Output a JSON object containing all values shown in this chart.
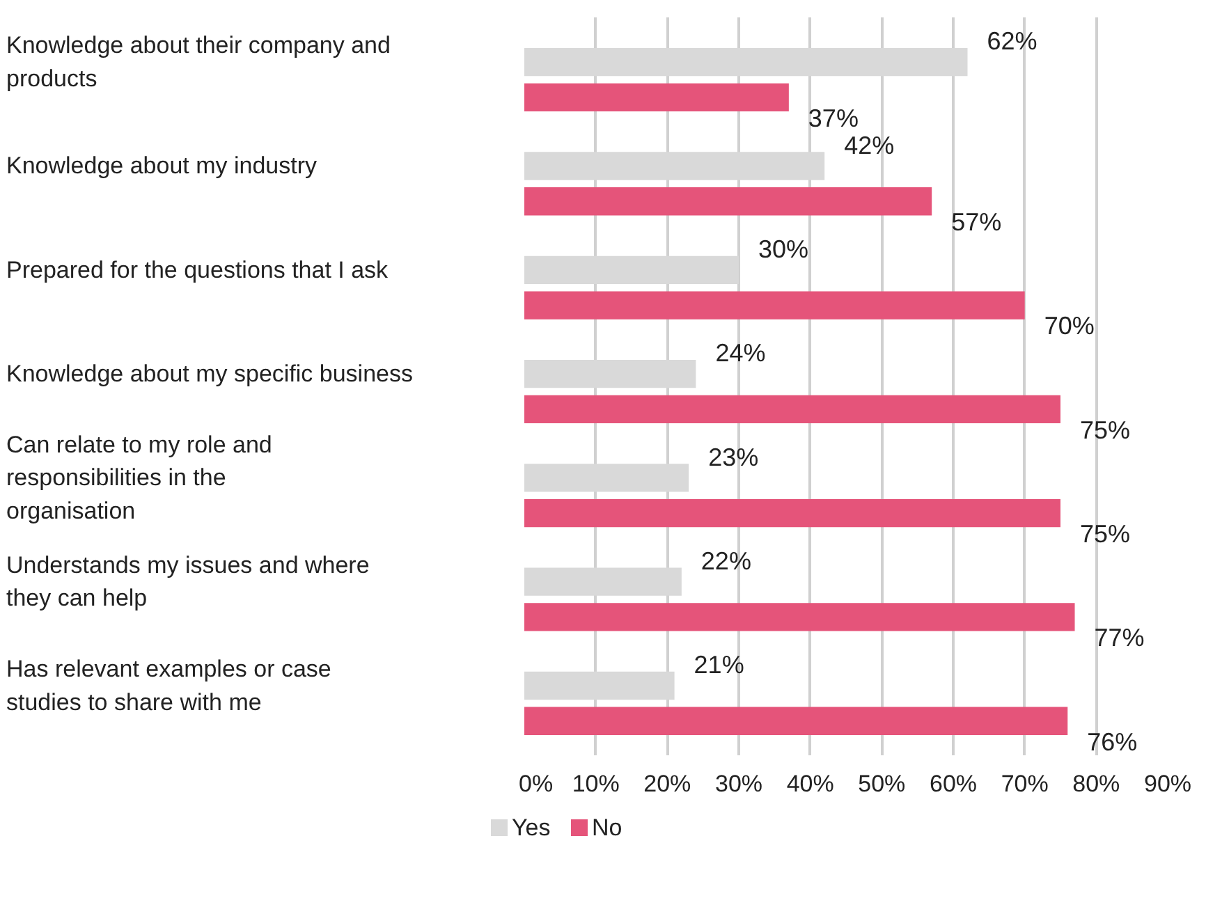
{
  "chart_data": {
    "type": "bar",
    "orientation": "horizontal",
    "categories": [
      "Knowledge about their company and products",
      "Knowledge about my industry",
      "Prepared for the questions that  I ask",
      "Knowledge about my specific business",
      "Can relate to my role and responsibilities in the organisation",
      "Understands my issues and where they can help",
      "Has relevant examples or case studies to share with me"
    ],
    "series": [
      {
        "name": "Yes",
        "color": "#d9d9d9",
        "values": [
          62,
          42,
          30,
          24,
          23,
          22,
          21
        ],
        "value_labels": [
          "62%",
          "42%",
          "30%",
          "24%",
          "23%",
          "22%",
          "21%"
        ]
      },
      {
        "name": "No",
        "color": "#e5547a",
        "values": [
          37,
          57,
          70,
          75,
          75,
          77,
          76
        ],
        "value_labels": [
          "37%",
          "57%",
          "70%",
          "75%",
          "75%",
          "77%",
          "76%"
        ]
      }
    ],
    "xlim": [
      0,
      90
    ],
    "xticks": [
      {
        "value": 0,
        "label": "0%"
      },
      {
        "value": 10,
        "label": "10%"
      },
      {
        "value": 20,
        "label": "20%"
      },
      {
        "value": 30,
        "label": "30%"
      },
      {
        "value": 40,
        "label": "40%"
      },
      {
        "value": 50,
        "label": "50%"
      },
      {
        "value": 60,
        "label": "60%"
      },
      {
        "value": 70,
        "label": "70%"
      },
      {
        "value": 80,
        "label": "80%"
      },
      {
        "value": 90,
        "label": "90%"
      }
    ],
    "grid": "x",
    "legend": "bottom"
  }
}
